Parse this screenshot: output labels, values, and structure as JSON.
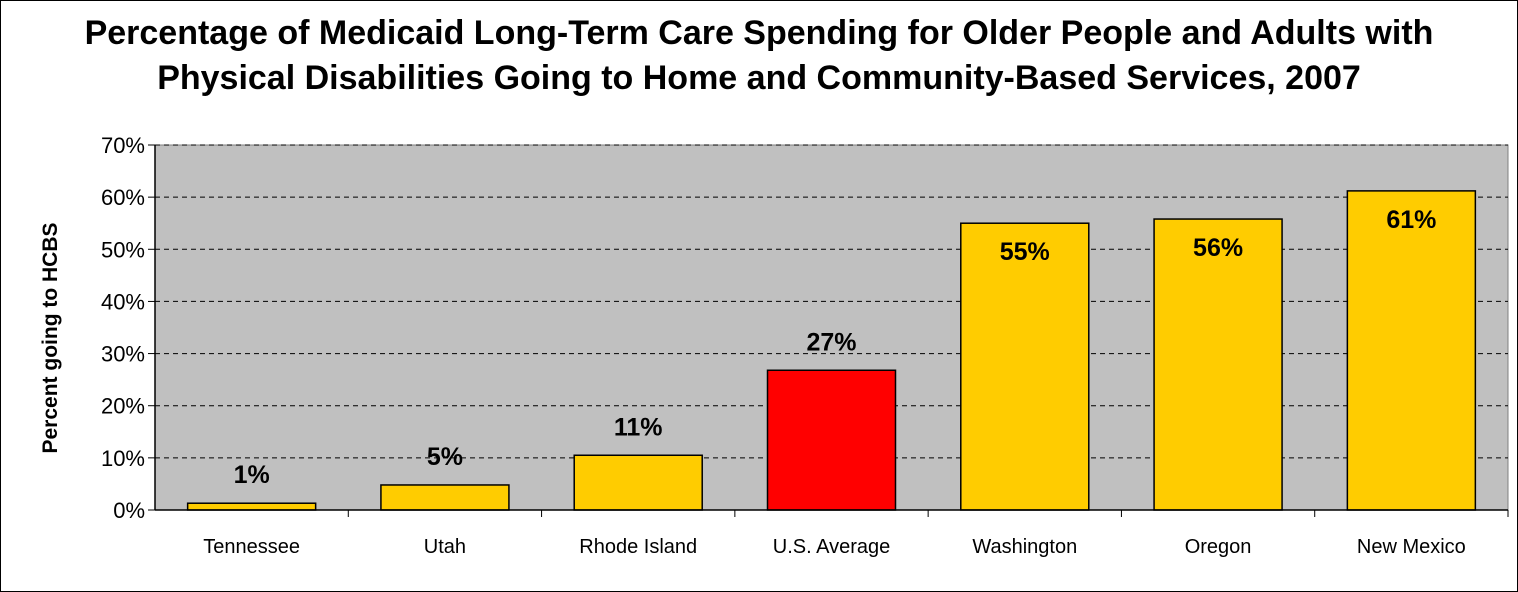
{
  "chart_data": {
    "type": "bar",
    "title_line1": "Percentage of Medicaid Long-Term Care Spending for Older People and Adults with",
    "title_line2": "Physical Disabilities Going to Home and Community-Based Services, 2007",
    "xlabel": "",
    "ylabel": "Percent going to HCBS",
    "categories": [
      "Tennessee",
      "Utah",
      "Rhode Island",
      "U.S. Average",
      "Washington",
      "Oregon",
      "New Mexico"
    ],
    "values": [
      1.3,
      4.8,
      10.5,
      26.8,
      55.0,
      55.8,
      61.2
    ],
    "data_labels": [
      "1%",
      "5%",
      "11%",
      "27%",
      "55%",
      "56%",
      "61%"
    ],
    "label_inside": [
      false,
      false,
      false,
      false,
      true,
      true,
      true
    ],
    "ylim": [
      0,
      70
    ],
    "yticks": [
      0,
      10,
      20,
      30,
      40,
      50,
      60,
      70
    ],
    "ytick_labels": [
      "0%",
      "10%",
      "20%",
      "30%",
      "40%",
      "50%",
      "60%",
      "70%"
    ],
    "grid": true,
    "grid_style": "dashed",
    "legend": "none",
    "colors": {
      "plot_background": "#C0C0C0",
      "bar": "#FFCC00",
      "highlight_bar": "#FF0000",
      "bar_border": "#000000"
    },
    "highlight_index": 3
  }
}
